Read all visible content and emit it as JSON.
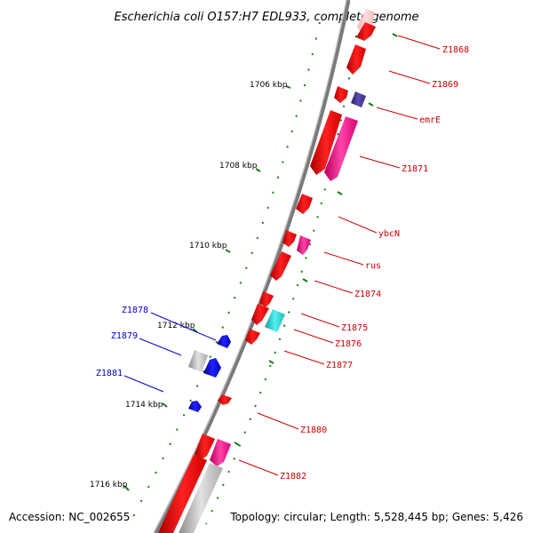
{
  "title": "Escherichia coli O157:H7 EDL933, complete genome",
  "footer": {
    "accession": "Accession: NC_002655",
    "summary": "Topology: circular; Length: 5,528,445 bp; Genes: 5,426"
  },
  "colors": {
    "backbone": "#8a8a8a",
    "tick": "#1a7a1a",
    "plus_strand_label": "#cc0000",
    "minus_strand_label": "#0000cc",
    "gene_red": "#ff1a1a",
    "gene_pink": "#ff3399",
    "gene_purple": "#4a3a9a",
    "gene_cyan": "#33d6d6",
    "gene_grey": "#bdbdbd",
    "gene_blue": "#0000ee"
  },
  "ticks": [
    {
      "label": "1706 kbp"
    },
    {
      "label": "1708 kbp"
    },
    {
      "label": "1710 kbp"
    },
    {
      "label": "1712 kbp"
    },
    {
      "label": "1714 kbp"
    },
    {
      "label": "1716 kbp"
    }
  ],
  "gene_labels": [
    {
      "label": "Z1868",
      "strand": "plus"
    },
    {
      "label": "Z1869",
      "strand": "plus"
    },
    {
      "label": "emrE",
      "strand": "plus"
    },
    {
      "label": "Z1871",
      "strand": "plus"
    },
    {
      "label": "ybcN",
      "strand": "plus"
    },
    {
      "label": "rus",
      "strand": "plus"
    },
    {
      "label": "Z1874",
      "strand": "plus"
    },
    {
      "label": "Z1875",
      "strand": "plus"
    },
    {
      "label": "Z1876",
      "strand": "plus"
    },
    {
      "label": "Z1877",
      "strand": "plus"
    },
    {
      "label": "Z1880",
      "strand": "plus"
    },
    {
      "label": "Z1882",
      "strand": "plus"
    },
    {
      "label": "Z1878",
      "strand": "minus"
    },
    {
      "label": "Z1879",
      "strand": "minus"
    },
    {
      "label": "Z1881",
      "strand": "minus"
    }
  ]
}
